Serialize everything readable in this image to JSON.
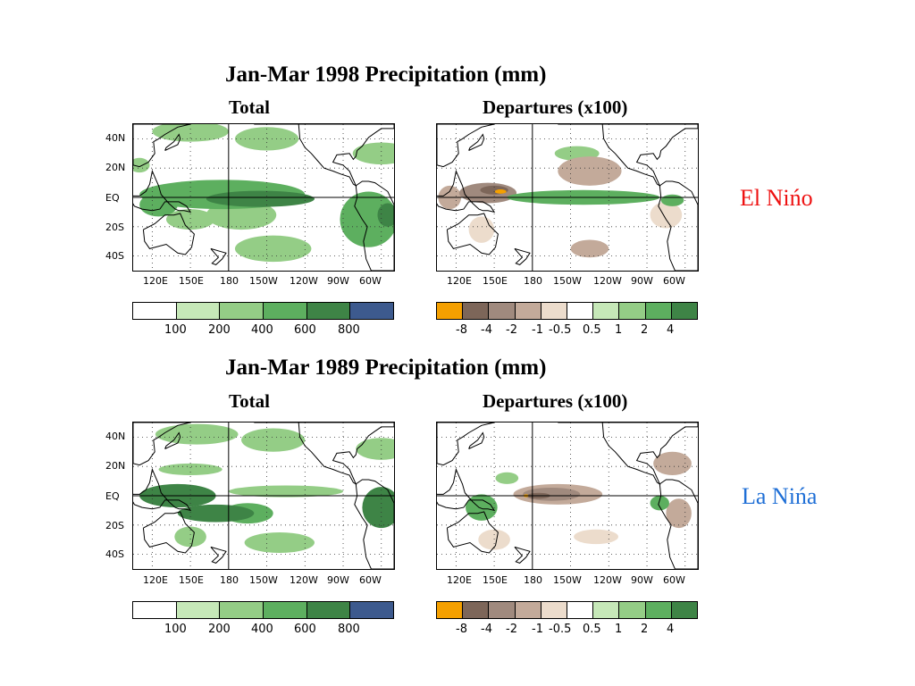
{
  "panels": [
    {
      "title": "Jan-Mar 1998 Precipitation (mm)",
      "left_subtitle": "Total",
      "right_subtitle": "Departures (x100)",
      "side_label": "El Nińo",
      "side_label_color": "#ee1111"
    },
    {
      "title": "Jan-Mar 1989 Precipitation (mm)",
      "left_subtitle": "Total",
      "right_subtitle": "Departures (x100)",
      "side_label": "La Nińa",
      "side_label_color": "#1f6fd6"
    }
  ],
  "axes": {
    "lat_ticks": [
      "40N",
      "20N",
      "EQ",
      "20S",
      "40S"
    ],
    "lon_ticks": [
      "120E",
      "150E",
      "180",
      "150W",
      "120W",
      "90W",
      "60W"
    ]
  },
  "colorbars": {
    "total": {
      "labels": [
        "100",
        "200",
        "400",
        "600",
        "800"
      ],
      "colors": [
        "#ffffff",
        "#c6e8b8",
        "#94cd86",
        "#5daf5f",
        "#3e8446",
        "#3d5a8e"
      ]
    },
    "departures": {
      "labels": [
        "-8",
        "-4",
        "-2",
        "-1",
        "-0.5",
        "0.5",
        "1",
        "2",
        "4"
      ],
      "colors": [
        "#f5a000",
        "#7d6659",
        "#a08a7e",
        "#c3aa9a",
        "#ecdccc",
        "#ffffff",
        "#c6e8b8",
        "#94cd86",
        "#5daf5f",
        "#3e8446"
      ]
    }
  },
  "chart_data": [
    {
      "type": "heatmap",
      "title": "Jan-Mar 1998 Precipitation (mm)",
      "subtitle": "Total",
      "xlabel": "",
      "ylabel": "",
      "x_ticks": [
        "120E",
        "150E",
        "180",
        "150W",
        "120W",
        "90W",
        "60W"
      ],
      "y_ticks": [
        "40N",
        "20N",
        "EQ",
        "20S",
        "40S"
      ],
      "levels": [
        100,
        200,
        400,
        600,
        800
      ],
      "level_colors": [
        "#ffffff",
        "#c6e8b8",
        "#94cd86",
        "#5daf5f",
        "#3e8446",
        "#3d5a8e"
      ],
      "regions": [
        {
          "lon": 150,
          "lat": 45,
          "w": 60,
          "h": 14,
          "value": 300
        },
        {
          "lon": 210,
          "lat": 40,
          "w": 50,
          "h": 16,
          "value": 250
        },
        {
          "lon": 300,
          "lat": 30,
          "w": 45,
          "h": 15,
          "value": 250
        },
        {
          "lon": 110,
          "lat": 22,
          "w": 16,
          "h": 10,
          "value": 250
        },
        {
          "lon": 175,
          "lat": 2,
          "w": 130,
          "h": 20,
          "value": 400
        },
        {
          "lon": 205,
          "lat": -1,
          "w": 85,
          "h": 11,
          "value": 700
        },
        {
          "lon": 190,
          "lat": -12,
          "w": 55,
          "h": 20,
          "value": 300
        },
        {
          "lon": 215,
          "lat": -35,
          "w": 60,
          "h": 18,
          "value": 200
        },
        {
          "lon": 290,
          "lat": -15,
          "w": 45,
          "h": 38,
          "value": 400
        },
        {
          "lon": 305,
          "lat": -12,
          "w": 16,
          "h": 16,
          "value": 650
        },
        {
          "lon": 125,
          "lat": -5,
          "w": 30,
          "h": 16,
          "value": 400
        },
        {
          "lon": 150,
          "lat": -15,
          "w": 38,
          "h": 14,
          "value": 300
        }
      ]
    },
    {
      "type": "heatmap",
      "title": "Jan-Mar 1998 Precipitation (mm)",
      "subtitle": "Departures (x100)",
      "xlabel": "",
      "ylabel": "",
      "x_ticks": [
        "120E",
        "150E",
        "180",
        "150W",
        "120W",
        "90W",
        "60W"
      ],
      "y_ticks": [
        "40N",
        "20N",
        "EQ",
        "20S",
        "40S"
      ],
      "levels": [
        -8,
        -4,
        -2,
        -1,
        -0.5,
        0.5,
        1,
        2,
        4
      ],
      "level_colors": [
        "#f5a000",
        "#7d6659",
        "#a08a7e",
        "#c3aa9a",
        "#ecdccc",
        "#ffffff",
        "#c6e8b8",
        "#94cd86",
        "#5daf5f",
        "#3e8446"
      ],
      "regions": [
        {
          "lon": 145,
          "lat": 3,
          "w": 45,
          "h": 14,
          "value": -3
        },
        {
          "lon": 150,
          "lat": 5,
          "w": 22,
          "h": 6,
          "value": -6
        },
        {
          "lon": 155,
          "lat": 4,
          "w": 9,
          "h": 3,
          "value": -10
        },
        {
          "lon": 225,
          "lat": 18,
          "w": 50,
          "h": 20,
          "value": -1.5
        },
        {
          "lon": 220,
          "lat": 0,
          "w": 120,
          "h": 10,
          "value": 3
        },
        {
          "lon": 215,
          "lat": 30,
          "w": 35,
          "h": 10,
          "value": 1
        },
        {
          "lon": 285,
          "lat": -12,
          "w": 25,
          "h": 18,
          "value": -1
        },
        {
          "lon": 290,
          "lat": -2,
          "w": 18,
          "h": 8,
          "value": 3
        },
        {
          "lon": 225,
          "lat": -35,
          "w": 30,
          "h": 12,
          "value": -1.5
        },
        {
          "lon": 140,
          "lat": -22,
          "w": 20,
          "h": 18,
          "value": -1
        },
        {
          "lon": 115,
          "lat": 0,
          "w": 18,
          "h": 16,
          "value": -2
        }
      ]
    },
    {
      "type": "heatmap",
      "title": "Jan-Mar 1989 Precipitation (mm)",
      "subtitle": "Total",
      "xlabel": "",
      "ylabel": "",
      "x_ticks": [
        "120E",
        "150E",
        "180",
        "150W",
        "120W",
        "90W",
        "60W"
      ],
      "y_ticks": [
        "40N",
        "20N",
        "EQ",
        "20S",
        "40S"
      ],
      "levels": [
        100,
        200,
        400,
        600,
        800
      ],
      "level_colors": [
        "#ffffff",
        "#c6e8b8",
        "#94cd86",
        "#5daf5f",
        "#3e8446",
        "#3d5a8e"
      ],
      "regions": [
        {
          "lon": 155,
          "lat": 42,
          "w": 65,
          "h": 14,
          "value": 300
        },
        {
          "lon": 215,
          "lat": 38,
          "w": 50,
          "h": 16,
          "value": 250
        },
        {
          "lon": 300,
          "lat": 32,
          "w": 40,
          "h": 15,
          "value": 250
        },
        {
          "lon": 150,
          "lat": 18,
          "w": 50,
          "h": 8,
          "value": 250
        },
        {
          "lon": 140,
          "lat": 0,
          "w": 60,
          "h": 16,
          "value": 700
        },
        {
          "lon": 170,
          "lat": -12,
          "w": 60,
          "h": 12,
          "value": 650
        },
        {
          "lon": 195,
          "lat": -12,
          "w": 40,
          "h": 14,
          "value": 400
        },
        {
          "lon": 225,
          "lat": 3,
          "w": 90,
          "h": 8,
          "value": 300
        },
        {
          "lon": 300,
          "lat": -8,
          "w": 30,
          "h": 28,
          "value": 700
        },
        {
          "lon": 220,
          "lat": -32,
          "w": 55,
          "h": 14,
          "value": 200
        },
        {
          "lon": 150,
          "lat": -28,
          "w": 25,
          "h": 14,
          "value": 300
        }
      ]
    },
    {
      "type": "heatmap",
      "title": "Jan-Mar 1989 Precipitation (mm)",
      "subtitle": "Departures (x100)",
      "xlabel": "",
      "ylabel": "",
      "x_ticks": [
        "120E",
        "150E",
        "180",
        "150W",
        "120W",
        "90W",
        "60W"
      ],
      "y_ticks": [
        "40N",
        "20N",
        "EQ",
        "20S",
        "40S"
      ],
      "levels": [
        -8,
        -4,
        -2,
        -1,
        -0.5,
        0.5,
        1,
        2,
        4
      ],
      "level_colors": [
        "#f5a000",
        "#7d6659",
        "#a08a7e",
        "#c3aa9a",
        "#ecdccc",
        "#ffffff",
        "#c6e8b8",
        "#94cd86",
        "#5daf5f",
        "#3e8446"
      ],
      "regions": [
        {
          "lon": 200,
          "lat": 1,
          "w": 70,
          "h": 14,
          "value": -1.5
        },
        {
          "lon": 195,
          "lat": 1,
          "w": 45,
          "h": 9,
          "value": -3
        },
        {
          "lon": 185,
          "lat": 0,
          "w": 18,
          "h": 4,
          "value": -6
        },
        {
          "lon": 175,
          "lat": 0,
          "w": 4,
          "h": 2,
          "value": -10
        },
        {
          "lon": 140,
          "lat": -8,
          "w": 25,
          "h": 18,
          "value": 2
        },
        {
          "lon": 160,
          "lat": 12,
          "w": 18,
          "h": 8,
          "value": 1.5
        },
        {
          "lon": 290,
          "lat": 22,
          "w": 30,
          "h": 16,
          "value": -2
        },
        {
          "lon": 295,
          "lat": -12,
          "w": 20,
          "h": 20,
          "value": -1.5
        },
        {
          "lon": 280,
          "lat": -5,
          "w": 15,
          "h": 10,
          "value": 2
        },
        {
          "lon": 150,
          "lat": -30,
          "w": 25,
          "h": 14,
          "value": -1
        },
        {
          "lon": 230,
          "lat": -28,
          "w": 35,
          "h": 10,
          "value": -1
        }
      ]
    }
  ]
}
